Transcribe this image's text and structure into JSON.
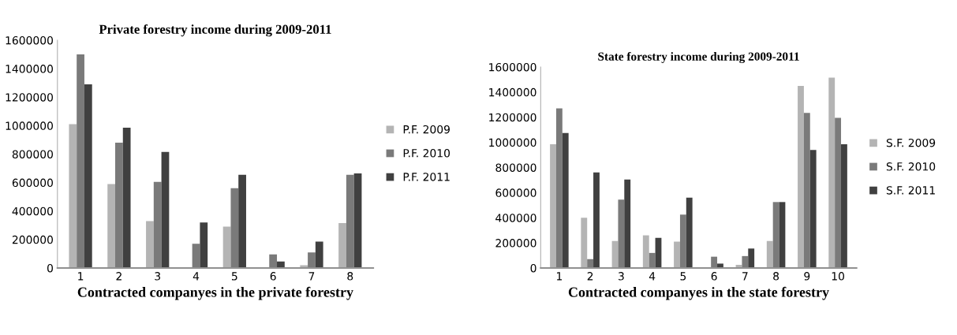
{
  "chart_data": [
    {
      "type": "bar",
      "title": "Private forestry income during 2009-2011",
      "xlabel": "Contracted companyes in the private forestry",
      "categories": [
        "1",
        "2",
        "3",
        "4",
        "5",
        "6",
        "7",
        "8"
      ],
      "ylim": [
        0,
        1600000
      ],
      "yticks": [
        0,
        200000,
        400000,
        600000,
        800000,
        1000000,
        1200000,
        1400000,
        1600000
      ],
      "legend": "right",
      "grid": false,
      "series": [
        {
          "name": "P.F. 2009",
          "color": "#b4b4b4",
          "values": [
            1010000,
            590000,
            330000,
            0,
            290000,
            0,
            20000,
            315000
          ]
        },
        {
          "name": "P.F. 2010",
          "color": "#7a7a7a",
          "values": [
            1500000,
            880000,
            605000,
            170000,
            560000,
            95000,
            110000,
            655000
          ]
        },
        {
          "name": "P.F. 2011",
          "color": "#404040",
          "values": [
            1290000,
            985000,
            815000,
            320000,
            655000,
            45000,
            185000,
            665000
          ]
        }
      ]
    },
    {
      "type": "bar",
      "title": "State forestry income during 2009-2011",
      "xlabel": "Contracted companyes in the state forestry",
      "categories": [
        "1",
        "2",
        "3",
        "4",
        "5",
        "6",
        "7",
        "8",
        "9",
        "10"
      ],
      "ylim": [
        0,
        1600000
      ],
      "yticks": [
        0,
        200000,
        400000,
        600000,
        800000,
        1000000,
        1200000,
        1400000,
        1600000
      ],
      "legend": "right",
      "grid": false,
      "series": [
        {
          "name": "S.F. 2009",
          "color": "#b4b4b4",
          "values": [
            985000,
            400000,
            215000,
            260000,
            210000,
            0,
            25000,
            215000,
            1450000,
            1515000
          ]
        },
        {
          "name": "S.F. 2010",
          "color": "#7a7a7a",
          "values": [
            1270000,
            70000,
            545000,
            120000,
            425000,
            90000,
            95000,
            525000,
            1235000,
            1195000
          ]
        },
        {
          "name": "S.F. 2011",
          "color": "#404040",
          "values": [
            1075000,
            760000,
            705000,
            240000,
            560000,
            35000,
            155000,
            525000,
            940000,
            985000
          ]
        }
      ]
    }
  ]
}
